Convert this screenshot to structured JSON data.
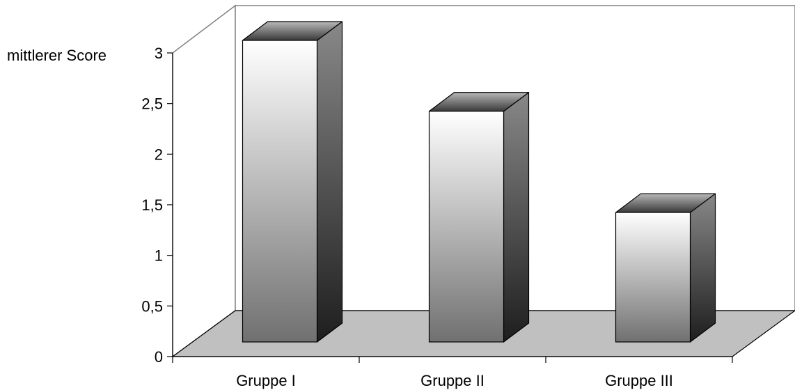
{
  "chart_data": {
    "type": "bar",
    "title": "",
    "ylabel": "mittlerer Score",
    "xlabel": "",
    "categories": [
      "Gruppe I",
      "Gruppe II",
      "Gruppe III"
    ],
    "values": [
      3.0,
      2.3,
      1.3
    ],
    "ylim": [
      0,
      3
    ],
    "yticks": [
      "0",
      "0,5",
      "1",
      "1,5",
      "2",
      "2,5",
      "3"
    ],
    "grid": false,
    "legend": "none",
    "style": "3d-column",
    "colors": {
      "floor": "#c0c0c0",
      "frame": "#808080",
      "bar_front_top": "#ffffff",
      "bar_front_bottom": "#707070",
      "bar_side_top": "#888888",
      "bar_side_bottom": "#1e1e1e",
      "bar_top_light": "#b8b8b8",
      "bar_top_dark": "#3a3a3a"
    }
  }
}
